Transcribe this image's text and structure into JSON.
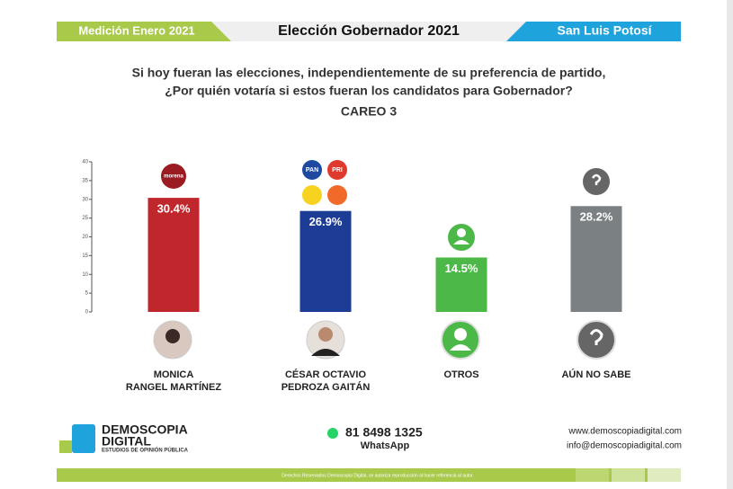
{
  "header": {
    "left": "Medición Enero 2021",
    "center": "Elección Gobernador 2021",
    "right": "San Luis Potosí"
  },
  "question": [
    "Si hoy fueran las elecciones, independientemente de su preferencia de partido,",
    "¿Por quién votaría si estos fueran los candidatos para Gobernador?"
  ],
  "chart_data": {
    "type": "bar",
    "title": "CAREO 3",
    "categories": [
      [
        "MONICA",
        "RANGEL MARTÍNEZ"
      ],
      [
        "CÉSAR OCTAVIO",
        "PEDROZA GAITÁN"
      ],
      [
        "OTROS"
      ],
      [
        "AÚN NO SABE"
      ]
    ],
    "values": [
      30.4,
      26.9,
      14.5,
      28.2
    ],
    "value_labels": [
      "30.4%",
      "26.9%",
      "14.5%",
      "28.2%"
    ],
    "colors": [
      "#c0272d",
      "#1d3c96",
      "#4cb848",
      "#7b8083"
    ],
    "ylim": [
      0,
      40
    ],
    "yticks": [
      0,
      5,
      10,
      15,
      20,
      25,
      30,
      35,
      40
    ]
  },
  "logos": {
    "morena": "morena",
    "pan": "PAN",
    "pri": "PRI"
  },
  "footer": {
    "brand": "DEMOSCOPIA",
    "brand2": "DIGITAL",
    "tagline": "ESTUDIOS DE OPINIÓN PÚBLICA",
    "phone": "81 8498 1325",
    "whatsapp": "WhatsApp",
    "web": "www.demoscopiadigital.com",
    "email": "info@demoscopiadigital.com",
    "rights": "Derechos Reservados Demoscopia Digital, se autoriza reproducción al hacer referencia al autor."
  }
}
